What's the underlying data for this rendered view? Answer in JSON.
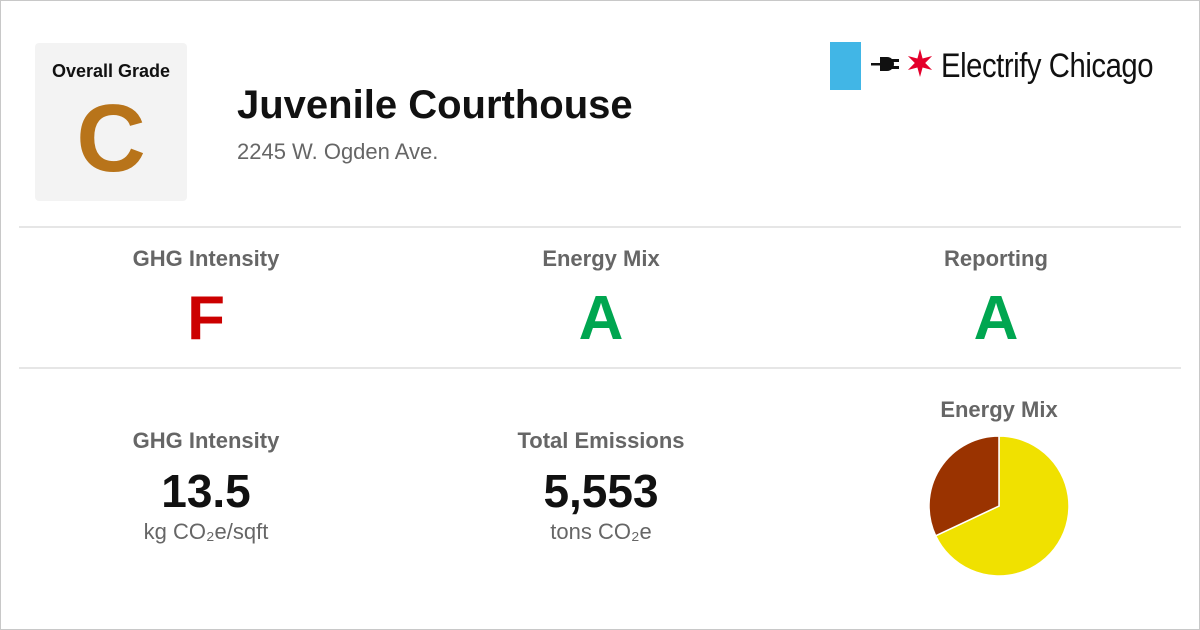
{
  "header": {
    "overall_grade_label": "Overall Grade",
    "overall_grade": "C",
    "overall_grade_color": "#b8741a",
    "building_name": "Juvenile Courthouse",
    "address": "2245 W. Ogden Ave."
  },
  "logo": {
    "text": "Electrify Chicago",
    "bar_color": "#41b6e6",
    "star_color": "#e4002b",
    "icons": [
      "plug-icon",
      "star-icon"
    ]
  },
  "grades": [
    {
      "label": "GHG Intensity",
      "grade": "F",
      "color": "#cc0000"
    },
    {
      "label": "Energy Mix",
      "grade": "A",
      "color": "#00a650"
    },
    {
      "label": "Reporting",
      "grade": "A",
      "color": "#00a650"
    }
  ],
  "stats": {
    "ghg_intensity": {
      "label": "GHG Intensity",
      "value": "13.5",
      "unit": "kg CO₂e/sqft"
    },
    "total_emissions": {
      "label": "Total Emissions",
      "value": "5,553",
      "unit": "tons CO₂e"
    }
  },
  "energy_mix_chart": {
    "label": "Energy Mix"
  },
  "chart_data": {
    "type": "pie",
    "title": "Energy Mix",
    "slices": [
      {
        "value": 0.68,
        "color": "#f0e100"
      },
      {
        "value": 0.32,
        "color": "#9a3300"
      }
    ]
  }
}
